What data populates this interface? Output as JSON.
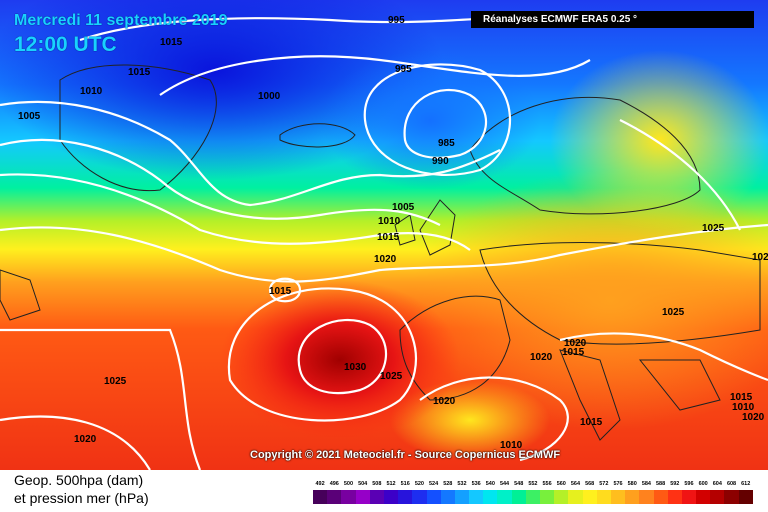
{
  "header": {
    "date": "Mercredi 11 septembre 2019",
    "time": "12:00 UTC",
    "source": "Réanalyses ECMWF ERA5 0.25 °"
  },
  "copyright": "Copyright © 2021 Meteociel.fr - Source Copernicus ECMWF",
  "legend": {
    "line1": "Geop. 500hpa (dam)",
    "line2": "et pression mer (hPa)",
    "ticks": [
      "492",
      "496",
      "500",
      "504",
      "508",
      "512",
      "516",
      "520",
      "524",
      "528",
      "532",
      "536",
      "540",
      "544",
      "548",
      "552",
      "556",
      "560",
      "564",
      "568",
      "572",
      "576",
      "580",
      "584",
      "588",
      "592",
      "596",
      "600",
      "604",
      "608",
      "612"
    ],
    "colors": [
      "#46005a",
      "#5a0078",
      "#7800a0",
      "#9600c8",
      "#5a00b4",
      "#3c00c8",
      "#2814dc",
      "#1e2ef0",
      "#1450ff",
      "#1478ff",
      "#14a0ff",
      "#14c8ff",
      "#00e6f0",
      "#00f0c8",
      "#00f096",
      "#3cf064",
      "#78f03c",
      "#b4f028",
      "#e6f01e",
      "#fff01e",
      "#ffdc1e",
      "#ffbe1e",
      "#ffa01e",
      "#ff821e",
      "#ff5a14",
      "#ff3214",
      "#f01414",
      "#d20000",
      "#b40000",
      "#8c0000",
      "#640000"
    ]
  },
  "isobars": [
    "1015",
    "1015",
    "1010",
    "1005",
    "1000",
    "995",
    "995",
    "985",
    "990",
    "1005",
    "1010",
    "1015",
    "1020",
    "1015",
    "1030",
    "1025",
    "1025",
    "1020",
    "1020",
    "1020",
    "1020",
    "1025",
    "1025",
    "1015",
    "1015",
    "1010",
    "1010",
    "1015",
    "1020",
    "102"
  ],
  "map_colors": {
    "low_center": "#0a1ee6",
    "high_center": "#b40000",
    "isobar": "#ffffff"
  }
}
